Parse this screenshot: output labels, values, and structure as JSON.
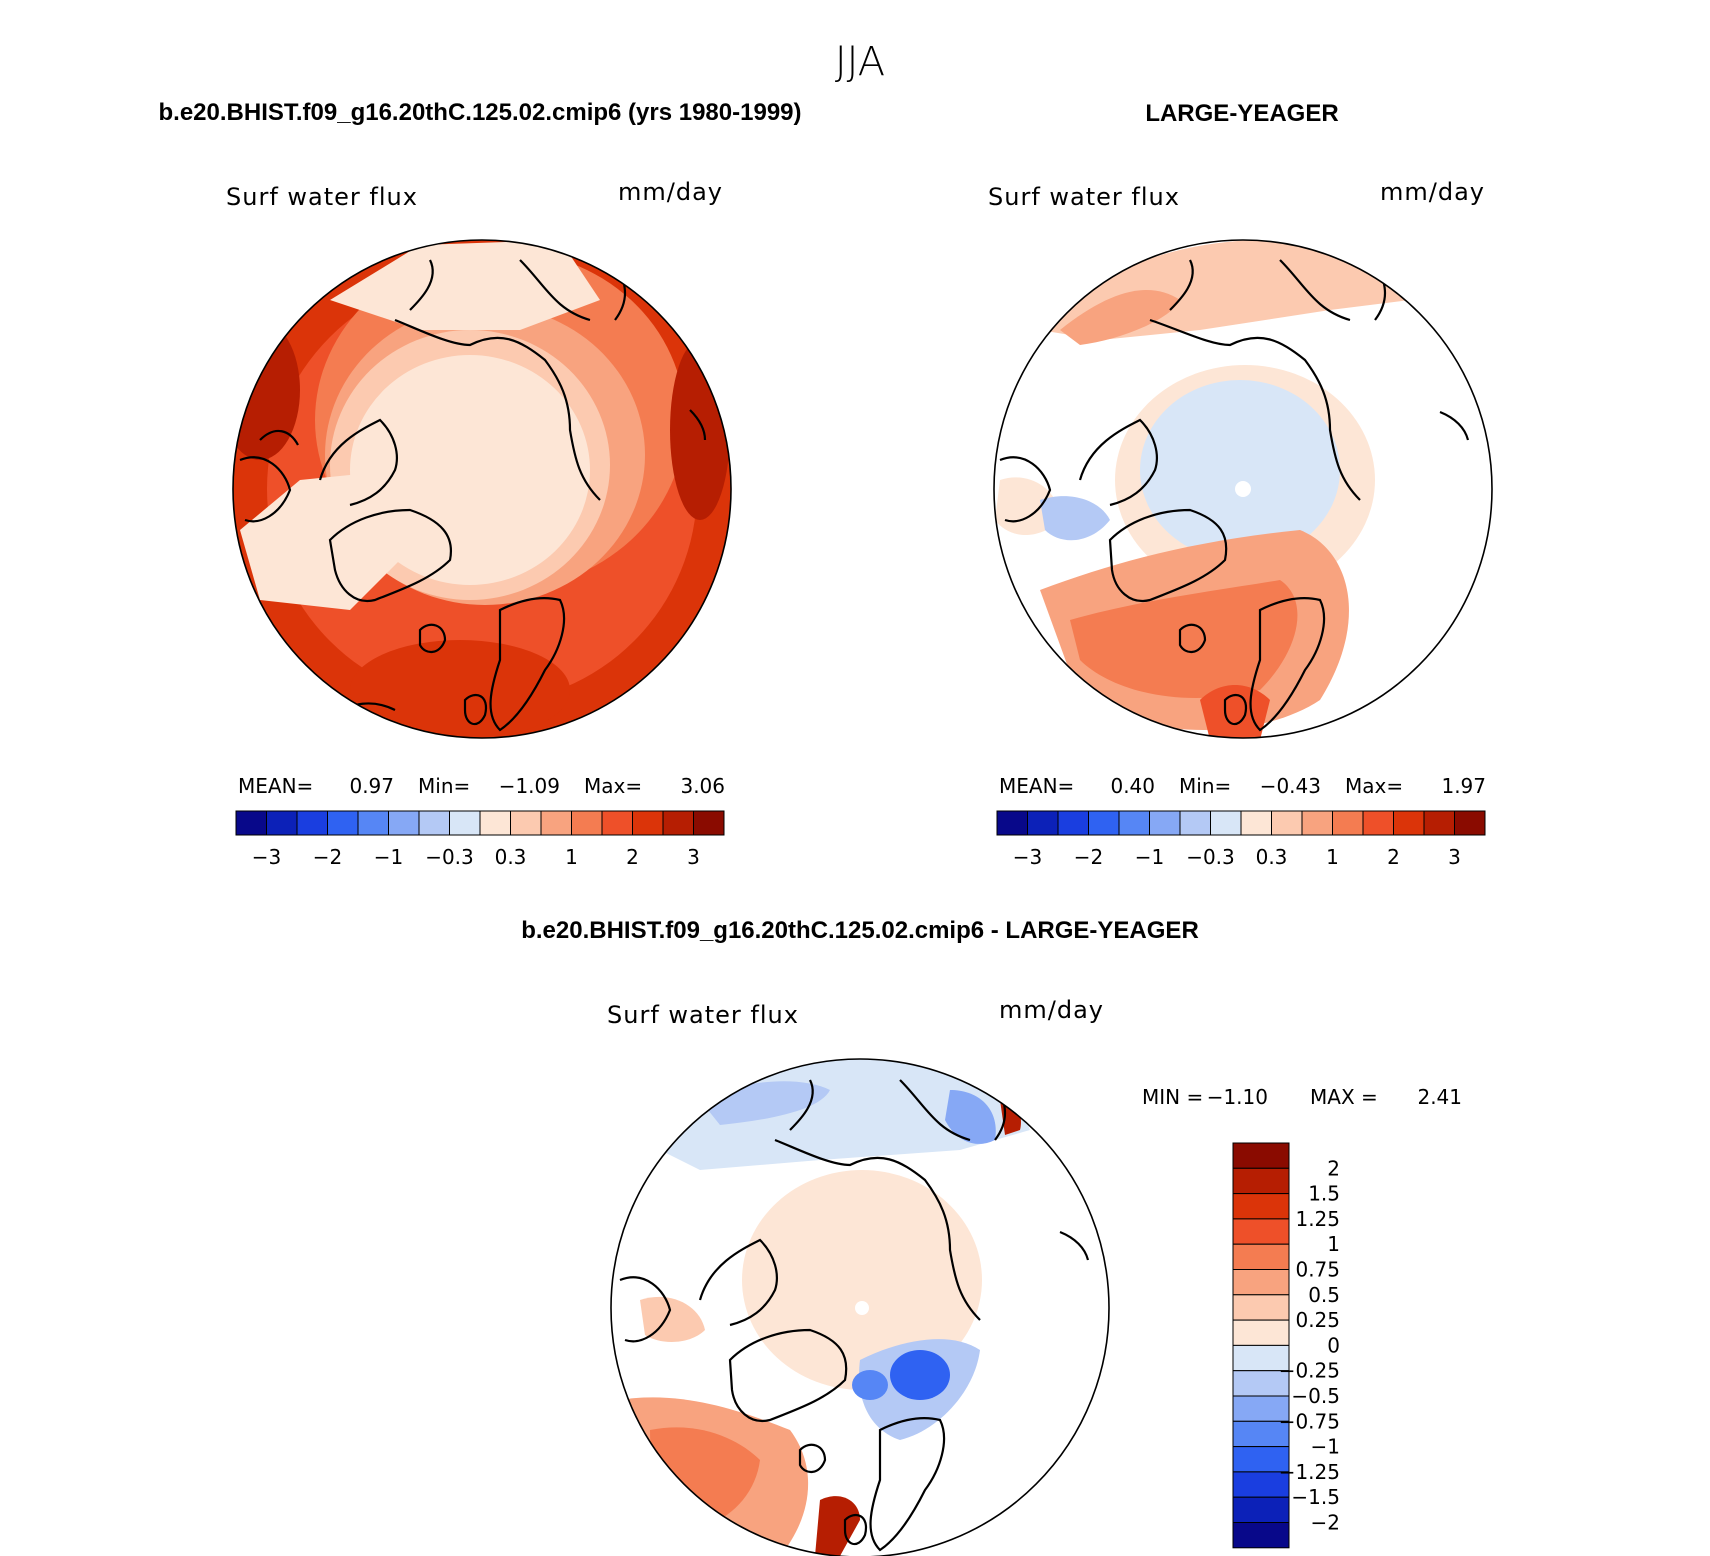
{
  "title": "JJA",
  "colors": {
    "hbar": [
      "#08088a",
      "#0c21b8",
      "#1a3ee0",
      "#2f62f2",
      "#5686f5",
      "#86a8f5",
      "#b4c9f5",
      "#d8e6f7",
      "#fde6d6",
      "#fccab0",
      "#f8a37f",
      "#f47c51",
      "#ee5029",
      "#db3409",
      "#b61e02",
      "#8a0b00"
    ],
    "vbar": [
      "#8a0b00",
      "#b61e02",
      "#db3409",
      "#ee5029",
      "#f47c51",
      "#f8a37f",
      "#fccab0",
      "#fde6d6",
      "#d8e6f7",
      "#b4c9f5",
      "#86a8f5",
      "#5686f5",
      "#2f62f2",
      "#1a3ee0",
      "#0c21b8",
      "#08088a"
    ],
    "coast": "#000000",
    "ocean_blank": "#ffffff"
  },
  "panels": [
    {
      "heading": "b.e20.BHIST.f09_g16.20thC.125.02.cmip6 (yrs 1980-1999)",
      "variable": "Surf water flux",
      "units": "mm/day",
      "stats": {
        "mean_label": "MEAN=",
        "mean": "0.97",
        "min_label": "Min=",
        "min": "−1.09",
        "max_label": "Max=",
        "max": "3.06"
      },
      "colorbar_ticks": [
        "−3",
        "−2",
        "−1",
        "−0.3",
        "0.3",
        "1",
        "2",
        "3"
      ]
    },
    {
      "heading": "LARGE-YEAGER",
      "variable": "Surf water flux",
      "units": "mm/day",
      "stats": {
        "mean_label": "MEAN=",
        "mean": "0.40",
        "min_label": "Min=",
        "min": "−0.43",
        "max_label": "Max=",
        "max": "1.97"
      },
      "colorbar_ticks": [
        "−3",
        "−2",
        "−1",
        "−0.3",
        "0.3",
        "1",
        "2",
        "3"
      ]
    },
    {
      "heading": "b.e20.BHIST.f09_g16.20thC.125.02.cmip6 - LARGE-YEAGER",
      "variable": "Surf water flux",
      "units": "mm/day",
      "stats": {
        "min_label": "MIN =",
        "min": "−1.10",
        "max_label": "MAX =",
        "max": "2.41"
      },
      "colorbar_ticks": [
        "2",
        "1.5",
        "1.25",
        "1",
        "0.75",
        "0.5",
        "0.25",
        "0",
        "−0.25",
        "−0.5",
        "−0.75",
        "−1",
        "−1.25",
        "−1.5",
        "−2"
      ]
    }
  ]
}
